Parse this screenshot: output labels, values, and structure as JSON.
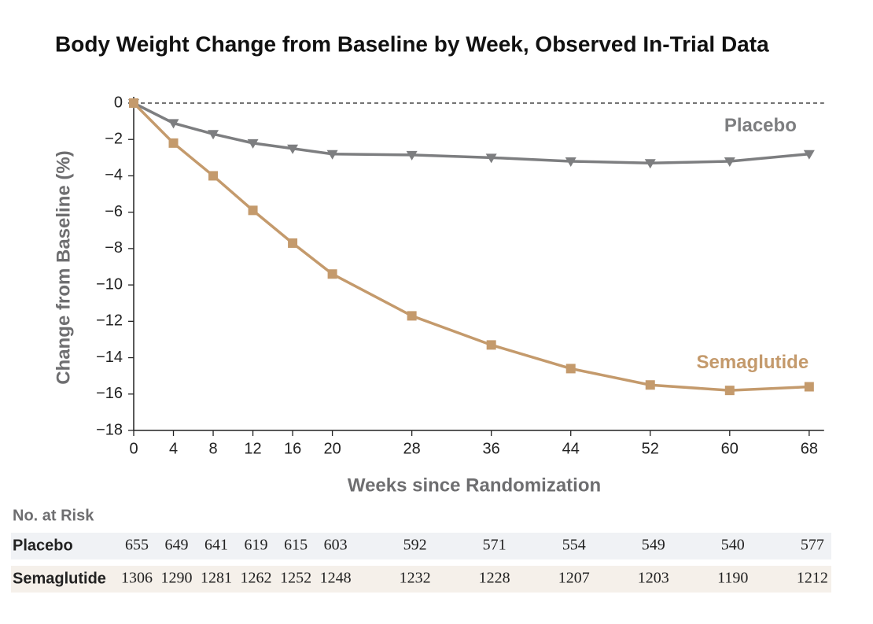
{
  "chart_data": {
    "type": "line",
    "title": "Body Weight Change from Baseline by Week, Observed In-Trial Data",
    "x_label": "Weeks since Randomization",
    "y_label": "Change from Baseline (%)",
    "x": [
      0,
      4,
      8,
      12,
      16,
      20,
      28,
      36,
      44,
      52,
      60,
      68
    ],
    "xlim": [
      0,
      69.5
    ],
    "xticks": [
      0,
      4,
      8,
      12,
      16,
      20,
      28,
      36,
      44,
      52,
      60,
      68
    ],
    "ylim": [
      -18,
      0
    ],
    "yticks": [
      {
        "value": -18,
        "label": "−18"
      },
      {
        "value": -16,
        "label": "−16"
      },
      {
        "value": -14,
        "label": "−14"
      },
      {
        "value": -12,
        "label": "−12"
      },
      {
        "value": -10,
        "label": "−10"
      },
      {
        "value": -8,
        "label": "−8"
      },
      {
        "value": -6,
        "label": "−6"
      },
      {
        "value": -4,
        "label": "−4"
      },
      {
        "value": -2,
        "label": "−2"
      },
      0
    ],
    "hline": 0,
    "series": [
      {
        "name": "Placebo",
        "color": "#7d7e80",
        "marker": "triangle-down",
        "values": [
          0,
          -1.1,
          -1.7,
          -2.2,
          -2.5,
          -2.8,
          -2.85,
          -3.0,
          -3.2,
          -3.3,
          -3.2,
          -2.8
        ],
        "at_risk": [
          655,
          649,
          641,
          619,
          615,
          603,
          592,
          571,
          554,
          549,
          540,
          577
        ]
      },
      {
        "name": "Semaglutide",
        "color": "#c49a6c",
        "marker": "square",
        "values": [
          0,
          -2.2,
          -4.0,
          -5.9,
          -7.7,
          -9.4,
          -11.7,
          -13.3,
          -14.6,
          -15.5,
          -15.8,
          -15.6
        ],
        "at_risk": [
          1306,
          1290,
          1281,
          1262,
          1252,
          1248,
          1232,
          1228,
          1207,
          1203,
          1190,
          1212
        ]
      }
    ],
    "risk_table_title": "No. at Risk"
  }
}
